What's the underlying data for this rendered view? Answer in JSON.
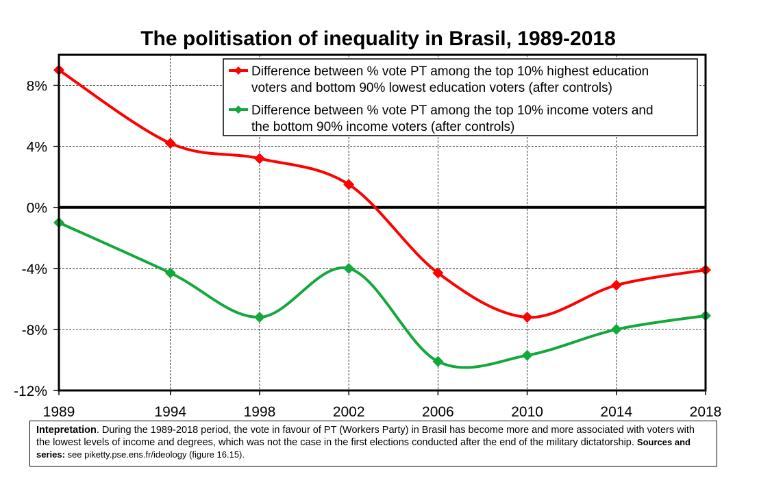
{
  "chart_data": {
    "type": "line",
    "title": "The politisation of inequality in Brasil, 1989-2018",
    "x": [
      "1989",
      "1994",
      "1998",
      "2002",
      "2006",
      "2010",
      "2014",
      "2018"
    ],
    "xlim": [
      1989,
      2018
    ],
    "ylim": [
      -12,
      10
    ],
    "yticks": [
      8,
      4,
      0,
      -4,
      -8,
      -12
    ],
    "ytick_labels": [
      "8%",
      "4%",
      "0%",
      "-4%",
      "-8%",
      "-12%"
    ],
    "grid": true,
    "legend_position": "top-right",
    "series": [
      {
        "name_line1": "Difference between % vote PT among the top 10% highest education",
        "name_line2": "voters and bottom 90% lowest education voters (after controls)",
        "color": "#ff0000",
        "values": [
          9.0,
          4.2,
          3.2,
          1.5,
          -4.3,
          -7.2,
          -5.1,
          -4.1
        ]
      },
      {
        "name_line1": "Difference between % vote PT among the top 10% income voters and",
        "name_line2": "the bottom 90% income voters (after controls)",
        "color": "#14a83c",
        "values": [
          -1.0,
          -4.3,
          -7.2,
          -4.0,
          -10.1,
          -9.7,
          -8.0,
          -7.1
        ]
      }
    ]
  },
  "note": {
    "label": "Intepretation",
    "text": ". During the 1989-2018 period, the vote in favour of PT (Workers Party) in Brasil has become more and more associated with voters with the lowest levels of income and degrees, which was not the case in the first elections conducted after the end of the military dictatorship. ",
    "sources_label": "Sources and series:",
    "sources_text": " see piketty.pse.ens.fr/ideology (figure 16.15)."
  }
}
